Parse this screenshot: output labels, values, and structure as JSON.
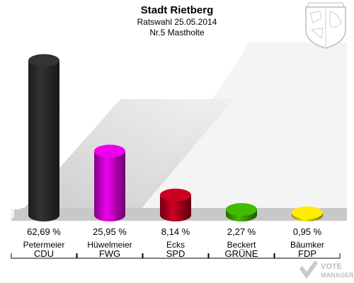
{
  "chart_data": {
    "type": "bar",
    "title": "Stadt Rietberg",
    "subtitle": "Ratswahl 25.05.2014",
    "subtitle2": "Nr.5 Mastholte",
    "ylim": [
      0,
      70
    ],
    "grid": false,
    "categories": [
      {
        "candidate": "Petermeier",
        "party": "CDU",
        "value": 62.69,
        "label": "62,69 %",
        "color": "#333333"
      },
      {
        "candidate": "Hüwelmeier",
        "party": "FWG",
        "value": 25.95,
        "label": "25,95 %",
        "color": "#ee00ee"
      },
      {
        "candidate": "Ecks",
        "party": "SPD",
        "value": 8.14,
        "label": "8,14 %",
        "color": "#cc0022"
      },
      {
        "candidate": "Beckert",
        "party": "GRÜNE",
        "value": 2.27,
        "label": "2,27 %",
        "color": "#44bb00"
      },
      {
        "candidate": "Bäumker",
        "party": "FDP",
        "value": 0.95,
        "label": "0,95 %",
        "color": "#ffee00"
      }
    ]
  },
  "watermark": {
    "line1": "VOTE",
    "line2": "MANAGER"
  }
}
